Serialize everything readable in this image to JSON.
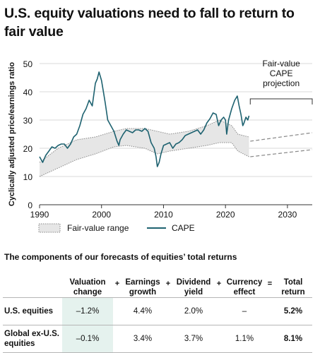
{
  "title": "U.S. equity valuations need to fall to return to fair value",
  "table_title": "The components of our forecasts of equities’ total returns",
  "table": {
    "headers": [
      "Valuation change",
      "Earnings growth",
      "Dividend yield",
      "Currency effect",
      "Total return"
    ],
    "operators": [
      "+",
      "+",
      "+",
      "="
    ],
    "rows": [
      {
        "label": "U.S. equities",
        "values": [
          "–1.2%",
          "4.4%",
          "2.0%",
          "–",
          "5.2%"
        ]
      },
      {
        "label": "Global ex-U.S. equities",
        "values": [
          "–0.1%",
          "3.4%",
          "3.7%",
          "1.1%",
          "8.1%"
        ]
      }
    ]
  },
  "colors": {
    "cape": "#1e6270",
    "band_fill": "#e6e6e6",
    "band_edge": "#888888",
    "highlight": "#e5f2ee"
  },
  "chart_data": {
    "type": "line",
    "ylabel": "Cyclically adjusted price/earnings ratio",
    "xlim": [
      1990,
      2034
    ],
    "ylim": [
      0,
      50
    ],
    "x_ticks": [
      1990,
      2000,
      2010,
      2020,
      2030
    ],
    "y_ticks": [
      0,
      10,
      20,
      30,
      40,
      50
    ],
    "legend": {
      "position": "bottom",
      "band_label": "Fair-value range",
      "line_label": "CAPE"
    },
    "annotation": "Fair-value CAPE projection",
    "series": [
      {
        "name": "CAPE",
        "x": [
          1990.0,
          1990.5,
          1991.0,
          1991.5,
          1992.0,
          1992.5,
          1993.0,
          1993.5,
          1994.0,
          1994.5,
          1995.0,
          1995.5,
          1996.0,
          1996.5,
          1997.0,
          1997.5,
          1998.0,
          1998.5,
          1999.0,
          1999.3,
          1999.6,
          2000.0,
          2000.3,
          2000.6,
          2001.0,
          2001.5,
          2002.0,
          2002.5,
          2002.8,
          2003.0,
          2003.5,
          2004.0,
          2004.5,
          2005.0,
          2005.5,
          2006.0,
          2006.5,
          2007.0,
          2007.5,
          2008.0,
          2008.5,
          2008.8,
          2009.0,
          2009.3,
          2009.6,
          2010.0,
          2010.5,
          2011.0,
          2011.5,
          2012.0,
          2012.5,
          2013.0,
          2013.5,
          2014.0,
          2014.5,
          2015.0,
          2015.5,
          2016.0,
          2016.5,
          2017.0,
          2017.5,
          2018.0,
          2018.5,
          2018.9,
          2019.3,
          2019.7,
          2020.0,
          2020.2,
          2020.5,
          2021.0,
          2021.5,
          2021.9,
          2022.2,
          2022.5,
          2022.8,
          2023.0,
          2023.3,
          2023.6,
          2023.8
        ],
        "values": [
          17,
          15,
          17.5,
          19,
          20.5,
          20,
          21,
          21.5,
          21.5,
          20,
          21.5,
          24,
          25,
          28,
          32,
          34,
          37,
          35,
          43,
          44.5,
          47,
          44,
          40,
          36,
          30,
          28,
          26,
          22.5,
          21,
          23,
          25,
          26.5,
          26,
          25.5,
          26.5,
          26.5,
          26,
          27,
          26,
          22,
          20,
          17,
          13.5,
          15,
          18,
          21,
          21.5,
          22,
          20,
          21.5,
          22,
          23,
          24.5,
          25,
          25.5,
          26,
          26.5,
          25,
          26.5,
          29,
          30.5,
          32.5,
          32,
          28,
          30,
          31,
          30,
          25,
          30,
          34,
          37,
          38.5,
          35,
          32,
          28,
          29,
          31,
          30,
          31.5
        ]
      },
      {
        "name": "Fair-value range upper",
        "x": [
          1990,
          1993,
          1996,
          1999,
          2002,
          2004,
          2007,
          2009,
          2011,
          2014,
          2017,
          2019,
          2021,
          2022,
          2023.8
        ],
        "values": [
          15,
          20,
          23,
          24,
          26,
          27,
          27,
          26,
          25,
          26,
          28,
          30,
          28,
          25,
          24
        ]
      },
      {
        "name": "Fair-value range lower",
        "x": [
          1990,
          1993,
          1996,
          1999,
          2002,
          2004,
          2007,
          2009,
          2011,
          2014,
          2017,
          2019,
          2021,
          2022,
          2023.8
        ],
        "values": [
          10,
          13,
          16,
          18,
          20.5,
          21,
          20,
          18,
          19,
          20,
          21,
          22,
          22,
          19,
          17
        ]
      },
      {
        "name": "Fair-value projection upper",
        "x": [
          2024,
          2034
        ],
        "values": [
          22.5,
          25.5
        ]
      },
      {
        "name": "Fair-value projection lower",
        "x": [
          2024,
          2034
        ],
        "values": [
          17,
          19.5
        ]
      }
    ]
  }
}
